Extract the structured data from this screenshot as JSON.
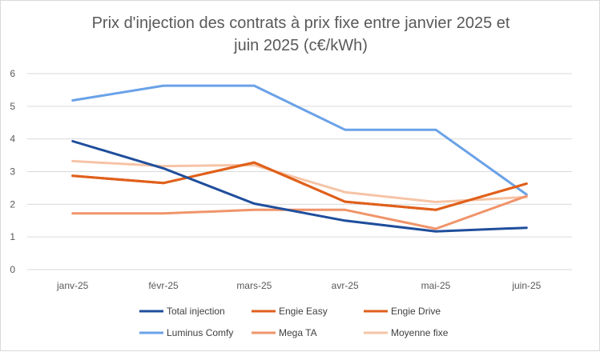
{
  "chart_data": {
    "type": "line",
    "title_line1": "Prix d'injection des contrats à prix fixe entre janvier 2025 et",
    "title_line2": "juin 2025 (c€/kWh)",
    "categories": [
      "janv-25",
      "févr-25",
      "mars-25",
      "avr-25",
      "mai-25",
      "juin-25"
    ],
    "ylim": [
      0,
      6
    ],
    "yticks": [
      0,
      1,
      2,
      3,
      4,
      5,
      6
    ],
    "grid": true,
    "legend_position": "bottom",
    "series": [
      {
        "name": "Total injection",
        "color": "#1f4e9c",
        "values": [
          3.93,
          3.1,
          2.02,
          1.5,
          1.17,
          1.28
        ]
      },
      {
        "name": "Engie Easy",
        "color": "#e0601b",
        "values": [
          2.87,
          2.65,
          3.28,
          2.08,
          1.83,
          2.63
        ]
      },
      {
        "name": "Engie Drive",
        "color": "#e0601b",
        "values": [
          2.87,
          2.65,
          3.28,
          2.08,
          1.83,
          2.63
        ]
      },
      {
        "name": "Luminus Comfy",
        "color": "#6aa2e8",
        "values": [
          5.18,
          5.63,
          5.63,
          4.28,
          4.28,
          2.3
        ]
      },
      {
        "name": "Mega TA",
        "color": "#f0946a",
        "values": [
          1.72,
          1.72,
          1.83,
          1.83,
          1.25,
          2.25
        ]
      },
      {
        "name": "Moyenne fixe",
        "color": "#f6c4a6",
        "values": [
          3.32,
          3.17,
          3.2,
          2.37,
          2.07,
          2.22
        ]
      }
    ]
  }
}
